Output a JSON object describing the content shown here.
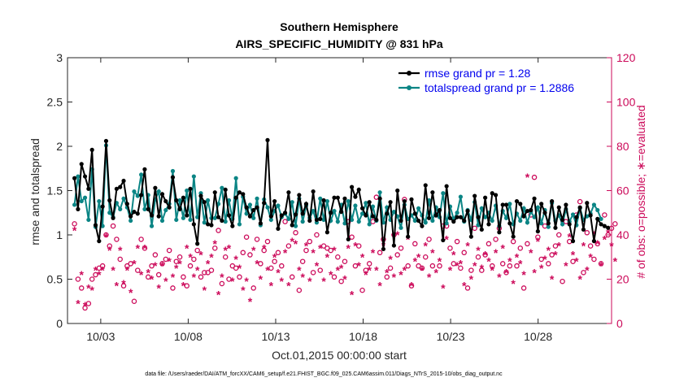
{
  "chart_data": {
    "type": "line",
    "title": "Southern Hemisphere",
    "subtitle": "AIRS_SPECIFIC_HUMIDITY @ 831 hPa",
    "xlabel": "Oct.01,2015 00:00:00 start",
    "ylabel": "rmse and totalspread",
    "y2label": "# of obs: o=possible; ∗=evaluated",
    "footnote": "data file: /Users/raeder/DAI/ATM_forcXX/CAM6_setup/f.e21.FHIST_BGC.f09_025.CAM6assim.011/Diags_NTrS_2015-10/obs_diag_output.nc",
    "xlim": [
      1.1,
      32.2
    ],
    "ylim": [
      0,
      3
    ],
    "y2lim": [
      0,
      120
    ],
    "x_ticks": [
      3,
      8,
      13,
      18,
      23,
      28
    ],
    "x_tick_labels": [
      "10/03",
      "10/08",
      "10/13",
      "10/18",
      "10/23",
      "10/28"
    ],
    "y_ticks": [
      0,
      0.5,
      1,
      1.5,
      2,
      2.5,
      3
    ],
    "y_tick_labels": [
      "0",
      "0.5",
      "1",
      "1.5",
      "2",
      "2.5",
      "3"
    ],
    "y2_ticks": [
      0,
      20,
      40,
      60,
      80,
      100,
      120
    ],
    "y2_tick_labels": [
      "0",
      "20",
      "40",
      "60",
      "80",
      "100",
      "120"
    ],
    "legend_position": "top-right",
    "grid": false,
    "series": [
      {
        "name": "rmse grand pr = 1.28",
        "color": "#000000",
        "axis": "left",
        "values": [
          1.64,
          1.29,
          1.8,
          1.66,
          1.52,
          1.96,
          1.11,
          0.93,
          1.32,
          2.06,
          1.39,
          1.19,
          1.52,
          1.54,
          1.61,
          1.35,
          1.21,
          1.26,
          1.24,
          1.45,
          1.74,
          1.29,
          1.22,
          1.53,
          1.21,
          1.46,
          1.38,
          1.31,
          1.65,
          1.39,
          1.29,
          1.42,
          1.22,
          1.52,
          1.12,
          0.9,
          1.44,
          1.37,
          1.12,
          1.11,
          1.48,
          1.2,
          1.16,
          1.51,
          1.22,
          1.1,
          1.42,
          1.48,
          1.46,
          1.31,
          1.21,
          1.28,
          1.31,
          1.13,
          1.36,
          2.07,
          1.21,
          1.38,
          1.07,
          1.22,
          1.25,
          1.48,
          1.11,
          1.23,
          1.45,
          1.24,
          1.35,
          1.16,
          1.49,
          1.17,
          1.18,
          1.39,
          1.03,
          1.25,
          1.42,
          1.42,
          1.26,
          1.41,
          0.95,
          1.54,
          1.43,
          1.51,
          1.3,
          1.22,
          1.37,
          1.21,
          1.17,
          1.41,
          0.84,
          1.24,
          1.37,
          0.88,
          1.5,
          1.16,
          1.38,
          0.98,
          1.4,
          1.24,
          1.16,
          1.1,
          1.56,
          1.19,
          1.48,
          1.22,
          1.28,
          0.94,
          1.55,
          1.19,
          1.15,
          1.2,
          1.2,
          1.16,
          1.27,
          0.98,
          1.44,
          1.2,
          1.06,
          1.42,
          1.12,
          1.47,
          1.45,
          1.03,
          1.34,
          1.34,
          1.13,
          0.98,
          1.38,
          1.35,
          1.21,
          1.27,
          1.28,
          1.41,
          1.04,
          1.35,
          1.25,
          1.13,
          1.38,
          1.08,
          1.31,
          1.17,
          1.34,
          1.12,
          0.93,
          1.2,
          1.31,
          1.06,
          1.36,
          1.22,
          0.93,
          1.18,
          1.12,
          1.1,
          1.08
        ]
      },
      {
        "name": "totalspread grand pr = 1.2886",
        "color": "#0b8585",
        "axis": "left",
        "values": [
          1.34,
          1.66,
          1.38,
          1.42,
          1.17,
          1.74,
          1.09,
          1.38,
          1.1,
          2.01,
          1.25,
          1.2,
          1.36,
          1.29,
          1.41,
          1.31,
          1.16,
          1.49,
          1.44,
          1.68,
          1.29,
          1.45,
          1.1,
          1.4,
          1.49,
          1.16,
          1.28,
          1.35,
          1.72,
          1.17,
          1.39,
          1.19,
          1.5,
          1.17,
          1.66,
          1.2,
          1.47,
          1.14,
          1.39,
          1.19,
          1.19,
          1.35,
          1.53,
          1.15,
          1.39,
          1.18,
          1.64,
          1.12,
          1.43,
          1.24,
          1.34,
          1.19,
          1.41,
          1.11,
          1.4,
          1.31,
          1.17,
          1.27,
          1.33,
          1.2,
          1.24,
          1.18,
          1.37,
          1.1,
          1.41,
          1.15,
          1.33,
          1.19,
          1.27,
          1.14,
          1.41,
          1.17,
          1.38,
          1.16,
          1.27,
          1.15,
          1.34,
          1.13,
          1.38,
          1.17,
          1.33,
          1.15,
          1.24,
          1.36,
          1.12,
          1.32,
          1.16,
          1.48,
          1.14,
          1.31,
          1.17,
          1.26,
          1.21,
          1.08,
          1.34,
          1.18,
          1.22,
          1.16,
          1.3,
          1.22,
          1.14,
          1.39,
          1.16,
          1.31,
          1.2,
          1.47,
          1.13,
          1.32,
          1.18,
          1.25,
          1.43,
          1.15,
          1.28,
          1.17,
          1.37,
          1.11,
          1.3,
          1.2,
          1.25,
          1.16,
          1.33,
          1.1,
          1.27,
          1.19,
          1.35,
          1.12,
          1.24,
          1.16,
          1.3,
          1.14,
          1.26,
          1.2,
          1.31,
          1.13,
          1.28,
          1.09,
          1.36,
          1.16,
          1.22,
          1.12,
          1.29,
          1.15,
          1.23,
          1.11,
          1.3,
          1.17,
          1.21,
          1.24,
          1.34,
          1.28,
          1.18
        ]
      },
      {
        "name": "# of obs possible",
        "color": "#cc0a5a",
        "axis": "right",
        "marker": "o",
        "values": [
          45,
          20,
          16,
          7,
          9,
          20,
          22,
          25,
          26,
          40,
          35,
          44,
          38,
          29,
          17,
          26,
          27,
          10,
          24,
          38,
          34,
          21,
          26,
          31,
          22,
          27,
          29,
          33,
          16,
          28,
          30,
          21,
          17,
          26,
          29,
          33,
          21,
          23,
          23,
          24,
          34,
          42,
          18,
          30,
          20,
          26,
          25,
          21,
          32,
          39,
          31,
          16,
          38,
          27,
          33,
          37,
          25,
          28,
          32,
          26,
          46,
          35,
          21,
          41,
          15,
          28,
          33,
          37,
          23,
          40,
          24,
          35,
          34,
          33,
          21,
          30,
          19,
          28,
          46,
          39,
          26,
          35,
          15,
          24,
          27,
          46,
          57,
          32,
          38,
          21,
          25,
          40,
          31,
          34,
          56,
          26,
          17,
          36,
          26,
          25,
          30,
          38,
          26,
          49,
          26,
          44,
          44,
          34,
          27,
          37,
          25,
          32,
          16,
          24,
          43,
          30,
          24,
          31,
          36,
          26,
          38,
          43,
          27,
          23,
          26,
          37,
          26,
          34,
          16,
          36,
          49,
          66,
          39,
          29,
          44,
          27,
          31,
          35,
          40,
          19,
          46,
          37,
          28,
          49,
          55,
          23,
          41,
          35,
          29,
          36,
          27,
          49,
          40,
          43,
          45
        ]
      },
      {
        "name": "# of obs evaluated",
        "color": "#cc0a5a",
        "axis": "right",
        "marker": "*",
        "values": [
          42,
          9,
          22,
          8,
          16,
          15,
          24,
          22,
          24,
          39,
          33,
          24,
          17,
          33,
          18,
          24,
          14,
          27,
          34,
          22,
          34,
          23,
          20,
          26,
          16,
          26,
          19,
          28,
          21,
          25,
          27,
          17,
          34,
          30,
          21,
          24,
          31,
          15,
          27,
          30,
          36,
          13,
          21,
          33,
          34,
          19,
          29,
          25,
          15,
          19,
          10,
          33,
          27,
          20,
          34,
          24,
          17,
          30,
          23,
          19,
          32,
          17,
          37,
          36,
          24,
          21,
          35,
          19,
          32,
          26,
          34,
          19,
          30,
          22,
          33,
          24,
          25,
          20,
          34,
          13,
          35,
          26,
          30,
          22,
          24,
          32,
          24,
          17,
          35,
          23,
          29,
          21,
          40,
          22,
          24,
          38,
          17,
          28,
          30,
          24,
          35,
          21,
          32,
          23,
          28,
          16,
          38,
          24,
          31,
          26,
          27,
          17,
          35,
          20,
          26,
          33,
          25,
          31,
          28,
          24,
          32,
          21,
          34,
          23,
          28,
          18,
          30,
          27,
          22,
          66,
          32,
          23,
          37,
          25,
          29,
          33,
          20,
          31,
          35,
          45,
          26,
          39,
          31,
          28,
          20,
          35,
          24,
          30,
          40,
          36,
          26,
          38,
          41,
          35,
          28
        ]
      }
    ]
  }
}
